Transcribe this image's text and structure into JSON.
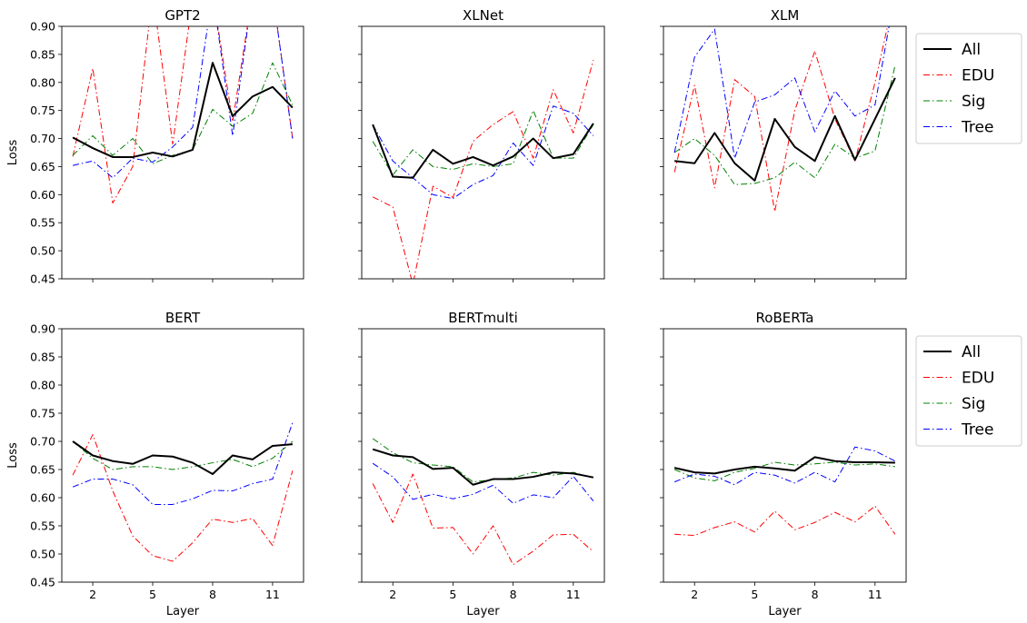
{
  "chart_data": [
    {
      "type": "line",
      "title": "GPT2",
      "xlabel": "",
      "ylabel": "Loss",
      "x": [
        1,
        2,
        3,
        4,
        5,
        6,
        7,
        8,
        9,
        10,
        11,
        12
      ],
      "xticks": [
        2,
        5,
        8,
        11
      ],
      "xlim": [
        0.45,
        12.55
      ],
      "ylim": [
        0.45,
        0.9
      ],
      "yticks": [
        0.45,
        0.5,
        0.55,
        0.6,
        0.65,
        0.7,
        0.75,
        0.8,
        0.85,
        0.9
      ],
      "legend": "",
      "series": [
        {
          "name": "All",
          "values": [
            0.702,
            0.683,
            0.667,
            0.667,
            0.675,
            0.668,
            0.68,
            0.835,
            0.74,
            0.775,
            0.792,
            0.755
          ]
        },
        {
          "name": "EDU",
          "values": [
            0.668,
            0.825,
            0.585,
            0.65,
            0.96,
            0.69,
            0.95,
            0.96,
            0.73,
            0.96,
            0.96,
            0.7
          ]
        },
        {
          "name": "Sig",
          "values": [
            0.67,
            0.705,
            0.67,
            0.7,
            0.655,
            0.67,
            0.68,
            0.752,
            0.722,
            0.745,
            0.835,
            0.76
          ]
        },
        {
          "name": "Tree",
          "values": [
            0.652,
            0.66,
            0.63,
            0.665,
            0.658,
            0.685,
            0.72,
            0.96,
            0.705,
            0.96,
            0.96,
            0.7
          ]
        }
      ]
    },
    {
      "type": "line",
      "title": "XLNet",
      "xlabel": "",
      "ylabel": "",
      "x": [
        1,
        2,
        3,
        4,
        5,
        6,
        7,
        8,
        9,
        10,
        11,
        12
      ],
      "xticks": [
        2,
        5,
        8,
        11
      ],
      "xlim": [
        0.45,
        12.55
      ],
      "ylim": [
        0.45,
        0.9
      ],
      "yticks": [
        0.45,
        0.5,
        0.55,
        0.6,
        0.65,
        0.7,
        0.75,
        0.8,
        0.85,
        0.9
      ],
      "legend": "",
      "series": [
        {
          "name": "All",
          "values": [
            0.725,
            0.632,
            0.63,
            0.68,
            0.655,
            0.667,
            0.652,
            0.668,
            0.7,
            0.665,
            0.672,
            0.727
          ]
        },
        {
          "name": "EDU",
          "values": [
            0.596,
            0.578,
            0.44,
            0.615,
            0.595,
            0.695,
            0.725,
            0.748,
            0.665,
            0.787,
            0.71,
            0.84
          ]
        },
        {
          "name": "Sig",
          "values": [
            0.695,
            0.635,
            0.68,
            0.65,
            0.645,
            0.655,
            0.65,
            0.655,
            0.75,
            0.665,
            0.665,
            0.725
          ]
        },
        {
          "name": "Tree",
          "values": [
            0.725,
            0.66,
            0.63,
            0.6,
            0.593,
            0.618,
            0.634,
            0.692,
            0.652,
            0.758,
            0.745,
            0.705
          ]
        }
      ]
    },
    {
      "type": "line",
      "title": "XLM",
      "xlabel": "",
      "ylabel": "",
      "x": [
        1,
        2,
        3,
        4,
        5,
        6,
        7,
        8,
        9,
        10,
        11,
        12
      ],
      "xticks": [
        2,
        5,
        8,
        11
      ],
      "xlim": [
        0.45,
        12.55
      ],
      "ylim": [
        0.45,
        0.9
      ],
      "yticks": [
        0.45,
        0.5,
        0.55,
        0.6,
        0.65,
        0.7,
        0.75,
        0.8,
        0.85,
        0.9
      ],
      "legend": "right",
      "series": [
        {
          "name": "All",
          "values": [
            0.66,
            0.656,
            0.71,
            0.656,
            0.625,
            0.735,
            0.685,
            0.66,
            0.74,
            0.662,
            0.735,
            0.808
          ]
        },
        {
          "name": "EDU",
          "values": [
            0.64,
            0.795,
            0.612,
            0.805,
            0.775,
            0.57,
            0.75,
            0.856,
            0.735,
            0.66,
            0.8,
            0.96
          ]
        },
        {
          "name": "Sig",
          "values": [
            0.675,
            0.7,
            0.67,
            0.618,
            0.62,
            0.63,
            0.658,
            0.63,
            0.69,
            0.665,
            0.678,
            0.83
          ]
        },
        {
          "name": "Tree",
          "values": [
            0.675,
            0.845,
            0.895,
            0.665,
            0.765,
            0.778,
            0.808,
            0.712,
            0.785,
            0.74,
            0.76,
            0.96
          ]
        }
      ]
    },
    {
      "type": "line",
      "title": "BERT",
      "xlabel": "Layer",
      "ylabel": "Loss",
      "x": [
        1,
        2,
        3,
        4,
        5,
        6,
        7,
        8,
        9,
        10,
        11,
        12
      ],
      "xticks": [
        2,
        5,
        8,
        11
      ],
      "xlim": [
        0.45,
        12.55
      ],
      "ylim": [
        0.45,
        0.9
      ],
      "yticks": [
        0.45,
        0.5,
        0.55,
        0.6,
        0.65,
        0.7,
        0.75,
        0.8,
        0.85,
        0.9
      ],
      "legend": "",
      "series": [
        {
          "name": "All",
          "values": [
            0.7,
            0.675,
            0.665,
            0.66,
            0.675,
            0.673,
            0.662,
            0.642,
            0.675,
            0.668,
            0.692,
            0.695
          ]
        },
        {
          "name": "EDU",
          "values": [
            0.64,
            0.712,
            0.612,
            0.532,
            0.497,
            0.487,
            0.52,
            0.562,
            0.556,
            0.563,
            0.515,
            0.648
          ]
        },
        {
          "name": "Sig",
          "values": [
            0.7,
            0.67,
            0.65,
            0.655,
            0.655,
            0.65,
            0.655,
            0.662,
            0.668,
            0.655,
            0.67,
            0.7
          ]
        },
        {
          "name": "Tree",
          "values": [
            0.619,
            0.633,
            0.633,
            0.623,
            0.588,
            0.588,
            0.598,
            0.613,
            0.612,
            0.625,
            0.633,
            0.733
          ]
        }
      ]
    },
    {
      "type": "line",
      "title": "BERTmulti",
      "xlabel": "Layer",
      "ylabel": "",
      "x": [
        1,
        2,
        3,
        4,
        5,
        6,
        7,
        8,
        9,
        10,
        11,
        12
      ],
      "xticks": [
        2,
        5,
        8,
        11
      ],
      "xlim": [
        0.45,
        12.55
      ],
      "ylim": [
        0.45,
        0.9
      ],
      "yticks": [
        0.45,
        0.5,
        0.55,
        0.6,
        0.65,
        0.7,
        0.75,
        0.8,
        0.85,
        0.9
      ],
      "legend": "",
      "series": [
        {
          "name": "All",
          "values": [
            0.686,
            0.675,
            0.672,
            0.651,
            0.653,
            0.623,
            0.633,
            0.633,
            0.637,
            0.645,
            0.643,
            0.636
          ]
        },
        {
          "name": "EDU",
          "values": [
            0.625,
            0.556,
            0.642,
            0.546,
            0.547,
            0.5,
            0.55,
            0.481,
            0.505,
            0.534,
            0.535,
            0.504
          ]
        },
        {
          "name": "Sig",
          "values": [
            0.705,
            0.68,
            0.662,
            0.658,
            0.655,
            0.628,
            0.632,
            0.635,
            0.645,
            0.64,
            0.645,
            0.635
          ]
        },
        {
          "name": "Tree",
          "values": [
            0.661,
            0.637,
            0.597,
            0.606,
            0.598,
            0.606,
            0.622,
            0.59,
            0.605,
            0.6,
            0.638,
            0.594
          ]
        }
      ]
    },
    {
      "type": "line",
      "title": "RoBERTa",
      "xlabel": "Layer",
      "ylabel": "",
      "x": [
        1,
        2,
        3,
        4,
        5,
        6,
        7,
        8,
        9,
        10,
        11,
        12
      ],
      "xticks": [
        2,
        5,
        8,
        11
      ],
      "xlim": [
        0.45,
        12.55
      ],
      "ylim": [
        0.45,
        0.9
      ],
      "yticks": [
        0.45,
        0.5,
        0.55,
        0.6,
        0.65,
        0.7,
        0.75,
        0.8,
        0.85,
        0.9
      ],
      "legend": "right",
      "series": [
        {
          "name": "All",
          "values": [
            0.653,
            0.645,
            0.643,
            0.65,
            0.655,
            0.652,
            0.648,
            0.672,
            0.665,
            0.663,
            0.663,
            0.662
          ]
        },
        {
          "name": "EDU",
          "values": [
            0.535,
            0.533,
            0.547,
            0.557,
            0.539,
            0.576,
            0.543,
            0.556,
            0.574,
            0.557,
            0.585,
            0.535
          ]
        },
        {
          "name": "Sig",
          "values": [
            0.65,
            0.635,
            0.63,
            0.645,
            0.652,
            0.663,
            0.658,
            0.66,
            0.663,
            0.658,
            0.66,
            0.655
          ]
        },
        {
          "name": "Tree",
          "values": [
            0.628,
            0.642,
            0.638,
            0.623,
            0.645,
            0.64,
            0.626,
            0.645,
            0.628,
            0.69,
            0.683,
            0.665
          ]
        }
      ]
    }
  ],
  "styles": {
    "All": {
      "color": "#000000",
      "dash": "",
      "width": 2
    },
    "EDU": {
      "color": "#ff0000",
      "dash": "7,3,1.5,3",
      "width": 1
    },
    "Sig": {
      "color": "#008000",
      "dash": "7,3,1.5,3",
      "width": 1
    },
    "Tree": {
      "color": "#0000ff",
      "dash": "7,3,1.5,3",
      "width": 1
    }
  }
}
